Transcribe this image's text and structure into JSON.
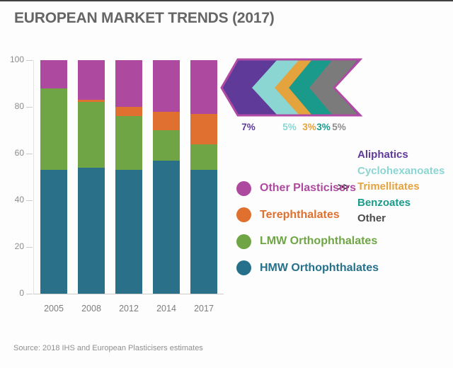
{
  "page": {
    "title": "EUROPEAN MARKET TRENDS (2017)",
    "source": "Source: 2018 IHS and European Plasticisers estimates"
  },
  "colors": {
    "chevron_border": "#b14aa5",
    "axis_line": "#cccccc",
    "axis_text": "#8c8c8c",
    "title_text": "#656565",
    "source_text": "#8f8f8f"
  },
  "chart_data": {
    "type": "bar",
    "stacked": true,
    "title": "EUROPEAN MARKET TRENDS (2017)",
    "categories": [
      "2005",
      "2008",
      "2012",
      "2014",
      "2017"
    ],
    "series": [
      {
        "name": "HMW Orthophthalates",
        "color": "#2b7089",
        "values": [
          53,
          54,
          53,
          57,
          53
        ]
      },
      {
        "name": "LMW Orthophthalates",
        "color": "#6fa545",
        "values": [
          35,
          28,
          23,
          13,
          11
        ]
      },
      {
        "name": "Terephthalates",
        "color": "#e0702f",
        "values": [
          0,
          1,
          4,
          8,
          13
        ]
      },
      {
        "name": "Other Plasticisers",
        "color": "#ad4a9f",
        "values": [
          12,
          17,
          20,
          22,
          23
        ]
      }
    ],
    "ylim": [
      0,
      100
    ],
    "yticks": [
      0,
      20,
      40,
      60,
      80,
      100
    ],
    "xlabel": "",
    "ylabel": "",
    "grid": false,
    "legend_position": "right"
  },
  "breakdown": {
    "pointer": ">>",
    "segments": [
      {
        "label": "Aliphatics",
        "pct": "7%",
        "color": "#5f3a99"
      },
      {
        "label": "Cyclohexanoates",
        "pct": "5%",
        "color": "#8bd6d2"
      },
      {
        "label": "Trimellitates",
        "pct": "3%",
        "color": "#e5a33e"
      },
      {
        "label": "Benzoates",
        "pct": "3%",
        "color": "#1a9a8b"
      },
      {
        "label": "Other",
        "pct": "5%",
        "color": "#7b7b7b",
        "label_color": "#4c4c4c",
        "pct_color": "#8c8c8c"
      }
    ]
  },
  "legend": {
    "items": [
      {
        "label": "Other Plasticisers",
        "color": "#ad4a9f"
      },
      {
        "label": "Terephthalates",
        "color": "#e0702f"
      },
      {
        "label": "LMW Orthophthalates",
        "color": "#6fa545"
      },
      {
        "label": "HMW Orthophthalates",
        "color": "#26708c"
      }
    ]
  }
}
